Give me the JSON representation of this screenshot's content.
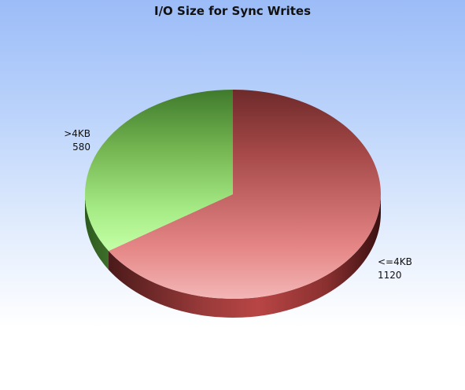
{
  "chart_data": {
    "type": "pie",
    "title": "I/O Size for Sync Writes",
    "slices": [
      {
        "label": "<=4KB",
        "value": 1120,
        "display": "1120",
        "color": "#c0504d"
      },
      {
        "label": ">4KB",
        "value": 580,
        "display": "580",
        "color": "#7fc95a"
      }
    ],
    "style": "3d",
    "legend": "none"
  }
}
